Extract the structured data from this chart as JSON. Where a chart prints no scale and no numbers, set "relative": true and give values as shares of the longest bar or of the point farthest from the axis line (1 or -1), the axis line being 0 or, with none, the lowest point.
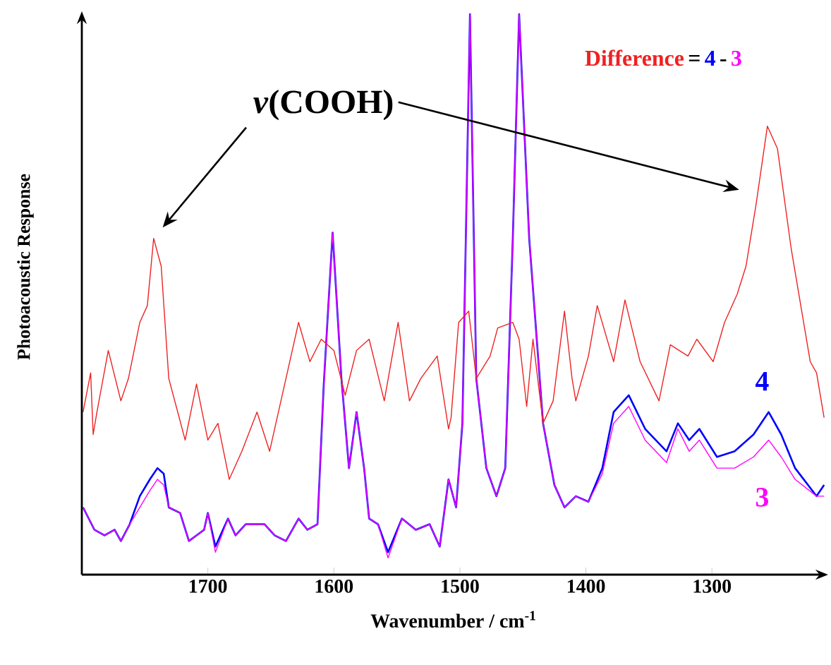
{
  "chart_data": {
    "type": "line",
    "relative": true,
    "xlabel": "Wavenumber / cm$^{-1}$",
    "ylabel": "Photoacoustic Response",
    "annotations": [
      "*ν*(COOH)",
      "=",
      "-"
    ],
    "xlim": [
      1800,
      1210
    ],
    "xticks": [
      1700,
      1600,
      1500,
      1400,
      1300
    ],
    "x": [
      1799,
      1790,
      1782,
      1774,
      1769,
      1762,
      1754,
      1746,
      1740,
      1735,
      1731,
      1722,
      1715,
      1703,
      1700,
      1694,
      1684,
      1678,
      1670,
      1655,
      1647,
      1638,
      1628,
      1621,
      1613,
      1608,
      1601,
      1594,
      1588,
      1582,
      1576,
      1572,
      1565,
      1557,
      1546,
      1535,
      1524,
      1516,
      1509,
      1503,
      1498,
      1492,
      1487,
      1479,
      1471,
      1464,
      1458,
      1453,
      1445,
      1434,
      1425,
      1417,
      1408,
      1398,
      1387,
      1378,
      1366,
      1353,
      1336,
      1327,
      1318,
      1310,
      1296,
      1282,
      1267,
      1255,
      1245,
      1234,
      1217,
      1211
    ],
    "series": [
      {
        "name": "4",
        "color": "#0000ff",
        "values": [
          0.12,
          0.08,
          0.07,
          0.08,
          0.06,
          0.09,
          0.14,
          0.17,
          0.19,
          0.18,
          0.12,
          0.11,
          0.06,
          0.08,
          0.11,
          0.05,
          0.1,
          0.07,
          0.09,
          0.09,
          0.07,
          0.06,
          0.1,
          0.08,
          0.09,
          0.34,
          0.61,
          0.35,
          0.19,
          0.29,
          0.19,
          0.1,
          0.09,
          0.04,
          0.1,
          0.08,
          0.09,
          0.05,
          0.17,
          0.12,
          0.27,
          1,
          0.35,
          0.19,
          0.14,
          0.19,
          0.6,
          1,
          0.6,
          0.27,
          0.16,
          0.12,
          0.14,
          0.13,
          0.19,
          0.29,
          0.32,
          0.26,
          0.22,
          0.27,
          0.24,
          0.26,
          0.21,
          0.22,
          0.25,
          0.29,
          0.25,
          0.19,
          0.14,
          0.16
        ]
      },
      {
        "name": "3",
        "color": "#ff00ff",
        "values": [
          0.12,
          0.08,
          0.07,
          0.08,
          0.06,
          0.09,
          0.12,
          0.15,
          0.17,
          0.16,
          0.12,
          0.11,
          0.06,
          0.08,
          0.11,
          0.04,
          0.1,
          0.07,
          0.09,
          0.09,
          0.07,
          0.06,
          0.1,
          0.08,
          0.09,
          0.34,
          0.61,
          0.35,
          0.19,
          0.29,
          0.19,
          0.1,
          0.09,
          0.03,
          0.1,
          0.08,
          0.09,
          0.05,
          0.17,
          0.12,
          0.27,
          1,
          0.35,
          0.19,
          0.14,
          0.19,
          0.6,
          1,
          0.6,
          0.27,
          0.16,
          0.12,
          0.14,
          0.13,
          0.18,
          0.27,
          0.3,
          0.24,
          0.2,
          0.26,
          0.22,
          0.24,
          0.19,
          0.19,
          0.21,
          0.24,
          0.21,
          0.17,
          0.14,
          0.14
        ]
      },
      {
        "name": "Difference",
        "color": "#ee2222",
        "x": [
          1799,
          1793,
          1791,
          1788,
          1779,
          1769,
          1763,
          1754,
          1748,
          1743,
          1737,
          1731,
          1718,
          1709,
          1700,
          1692,
          1683,
          1673,
          1661,
          1651,
          1642,
          1628,
          1619,
          1610,
          1600,
          1591,
          1582,
          1572,
          1560,
          1549,
          1540,
          1531,
          1518,
          1509,
          1507,
          1501,
          1493,
          1487,
          1476,
          1470,
          1458,
          1453,
          1447,
          1442,
          1434,
          1426,
          1417,
          1411,
          1408,
          1398,
          1391,
          1378,
          1369,
          1357,
          1342,
          1333,
          1319,
          1312,
          1299,
          1290,
          1280,
          1273,
          1265,
          1256,
          1248,
          1237,
          1222,
          1217,
          1211
        ],
        "values": [
          0.29,
          0.36,
          0.25,
          0.29,
          0.4,
          0.31,
          0.35,
          0.45,
          0.48,
          0.6,
          0.55,
          0.35,
          0.24,
          0.34,
          0.24,
          0.27,
          0.17,
          0.22,
          0.29,
          0.22,
          0.31,
          0.45,
          0.38,
          0.42,
          0.4,
          0.32,
          0.4,
          0.42,
          0.31,
          0.45,
          0.31,
          0.35,
          0.39,
          0.26,
          0.28,
          0.45,
          0.47,
          0.35,
          0.39,
          0.44,
          0.45,
          0.42,
          0.3,
          0.42,
          0.27,
          0.31,
          0.47,
          0.35,
          0.31,
          0.39,
          0.48,
          0.38,
          0.49,
          0.38,
          0.31,
          0.41,
          0.39,
          0.42,
          0.38,
          0.45,
          0.5,
          0.55,
          0.66,
          0.8,
          0.76,
          0.58,
          0.38,
          0.36,
          0.28
        ]
      }
    ]
  }
}
